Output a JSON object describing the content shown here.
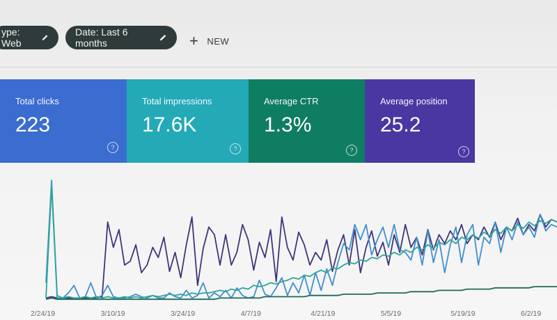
{
  "filters": {
    "type_chip": "ype: Web",
    "date_chip": "Date: Last 6 months",
    "new_label": "NEW"
  },
  "metrics": [
    {
      "label": "Total clicks",
      "value": "223",
      "color": "#3b6ccf"
    },
    {
      "label": "Total impressions",
      "value": "17.6K",
      "color": "#24a9b7"
    },
    {
      "label": "Average CTR",
      "value": "1.3%",
      "color": "#0f7d62"
    },
    {
      "label": "Average position",
      "value": "25.2",
      "color": "#4a37a2"
    }
  ],
  "help_glyph": "?",
  "chart_data": {
    "type": "line",
    "x_tick_labels": [
      "2/24/19",
      "3/10/19",
      "3/24/19",
      "4/7/19",
      "4/21/19",
      "5/5/19",
      "5/19/19",
      "6/2/19"
    ],
    "y_range": [
      0,
      100
    ],
    "grid": false,
    "legend": "none",
    "series": [
      {
        "color": "#3e3577",
        "values": [
          2,
          3,
          2,
          2,
          2,
          2,
          2,
          2,
          2,
          2,
          3,
          62,
          42,
          56,
          28,
          31,
          44,
          22,
          28,
          42,
          34,
          50,
          23,
          38,
          18,
          44,
          66,
          12,
          41,
          58,
          52,
          28,
          52,
          28,
          38,
          60,
          48,
          24,
          46,
          34,
          56,
          15,
          66,
          42,
          32,
          54,
          44,
          28,
          38,
          32,
          48,
          23,
          40,
          52,
          28,
          56,
          22,
          42,
          55,
          35,
          46,
          28,
          52,
          38,
          60,
          42,
          50,
          36,
          56,
          40,
          52,
          45,
          55,
          48,
          60,
          45,
          52,
          48,
          58,
          50,
          62,
          48,
          58,
          55,
          65,
          52,
          60,
          55,
          68,
          58,
          64,
          62
        ]
      },
      {
        "color": "#3f8fcf",
        "values": [
          14,
          95,
          4,
          2,
          6,
          12,
          2,
          3,
          14,
          2,
          4,
          12,
          3,
          2,
          2,
          3,
          5,
          3,
          2,
          4,
          2,
          2,
          6,
          3,
          2,
          8,
          2,
          4,
          14,
          2,
          6,
          3,
          8,
          2,
          10,
          4,
          2,
          3,
          16,
          5,
          3,
          10,
          18,
          4,
          14,
          6,
          20,
          4,
          22,
          8,
          25,
          12,
          30,
          45,
          40,
          60,
          48,
          60,
          36,
          48,
          58,
          42,
          60,
          40,
          38,
          32,
          50,
          28,
          55,
          30,
          48,
          22,
          44,
          58,
          30,
          52,
          60,
          28,
          50,
          45,
          62,
          38,
          58,
          48,
          62,
          52,
          58,
          50,
          68,
          55,
          60,
          58
        ]
      },
      {
        "color": "#2fa59a",
        "values": [
          2,
          90,
          2,
          2,
          3,
          2,
          2,
          3,
          2,
          3,
          2,
          3,
          2,
          2,
          3,
          2,
          3,
          2,
          3,
          4,
          3,
          4,
          5,
          4,
          5,
          4,
          6,
          5,
          6,
          6,
          7,
          8,
          7,
          9,
          8,
          10,
          9,
          12,
          11,
          12,
          14,
          13,
          15,
          16,
          18,
          17,
          20,
          19,
          22,
          24,
          22,
          26,
          25,
          28,
          30,
          29,
          32,
          31,
          34,
          33,
          36,
          35,
          38,
          36,
          40,
          38,
          42,
          40,
          44,
          41,
          46,
          44,
          48,
          45,
          50,
          48,
          52,
          49,
          54,
          51,
          56,
          53,
          58,
          55,
          60,
          57,
          62,
          59,
          63,
          61,
          64,
          62
        ]
      },
      {
        "color": "#1f6a56",
        "values": [
          1,
          2,
          1,
          1,
          1,
          1,
          1,
          1,
          1,
          1,
          1,
          1,
          1,
          1,
          1,
          1,
          1,
          1,
          1,
          1,
          1,
          1,
          1,
          1,
          1,
          1,
          1,
          1,
          1,
          1,
          1,
          2,
          2,
          2,
          2,
          2,
          2,
          2,
          2,
          3,
          3,
          3,
          3,
          3,
          3,
          3,
          3,
          4,
          4,
          4,
          4,
          4,
          4,
          5,
          5,
          5,
          5,
          5,
          5,
          6,
          6,
          6,
          6,
          6,
          6,
          7,
          7,
          7,
          7,
          7,
          8,
          8,
          8,
          8,
          8,
          9,
          9,
          9,
          9,
          9,
          10,
          10,
          10,
          10,
          10,
          10,
          10,
          11,
          11,
          11,
          11,
          11
        ]
      }
    ]
  }
}
